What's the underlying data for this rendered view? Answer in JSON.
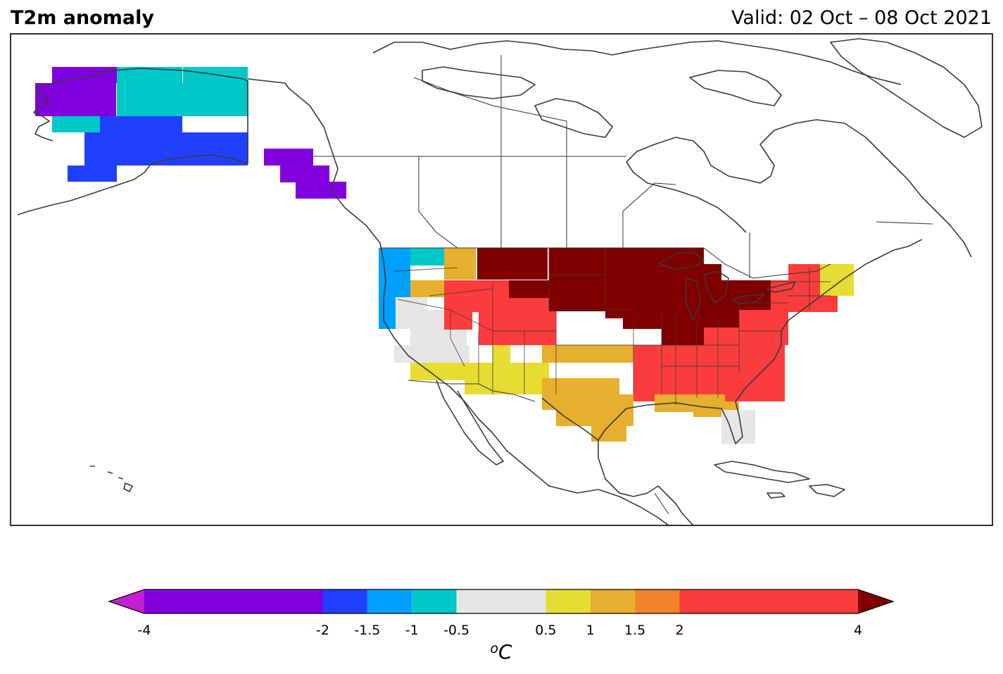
{
  "header": {
    "title": "T2m anomaly",
    "valid": "Valid: 02 Oct – 08 Oct 2021"
  },
  "colorbar": {
    "unit_base": "C",
    "unit_super": "o",
    "under_color": "#c020d0",
    "over_color": "#800000",
    "bins": [
      {
        "from": -4,
        "to": -2,
        "color": "#8000e0"
      },
      {
        "from": -2,
        "to": -1.5,
        "color": "#2040ff"
      },
      {
        "from": -1.5,
        "to": -1,
        "color": "#00a0ff"
      },
      {
        "from": -1,
        "to": -0.5,
        "color": "#00c8c8"
      },
      {
        "from": -0.5,
        "to": 0.5,
        "color": "#e6e6e6"
      },
      {
        "from": 0.5,
        "to": 1,
        "color": "#e6dc32"
      },
      {
        "from": 1,
        "to": 1.5,
        "color": "#e6af2d"
      },
      {
        "from": 1.5,
        "to": 2,
        "color": "#f08228"
      },
      {
        "from": 2,
        "to": 4,
        "color": "#fa3c3c"
      }
    ],
    "tick_labels": [
      "-4",
      "-2",
      "-1.5",
      "-1",
      "-0.5",
      "0.5",
      "1",
      "1.5",
      "2",
      "4"
    ]
  },
  "anomaly_cells": {
    "alaska_north": -3,
    "alaska_central": -0.8,
    "alaska_south": -1.6,
    "alaska_panhandle": -2.5,
    "pacific_northwest": -1.3,
    "oregon_north": -0.7,
    "interior_northwest": 1.2,
    "california_coast": 0.1,
    "great_basin": 0.2,
    "southwest": 0.8,
    "rockies": 2.5,
    "southern_plains": 1.3,
    "northern_plains": 5,
    "midwest": 5,
    "great_lakes": 5,
    "northeast": 2.8,
    "maine": 0.8,
    "southeast": 3,
    "gulf_coast": 1.2,
    "florida": 0.2
  }
}
